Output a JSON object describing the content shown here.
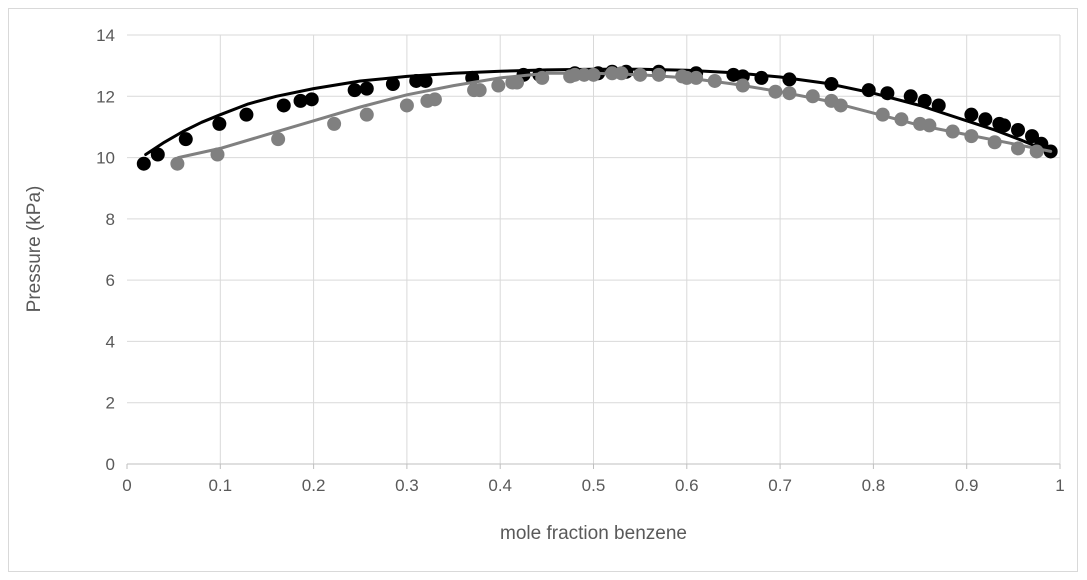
{
  "chart_data": {
    "type": "scatter",
    "title": "",
    "xlabel": "mole fraction benzene",
    "ylabel": "Pressure (kPa)",
    "xlim": [
      0,
      1
    ],
    "ylim": [
      0,
      14
    ],
    "x_ticks": [
      0,
      0.1,
      0.2,
      0.3,
      0.4,
      0.5,
      0.6,
      0.7,
      0.8,
      0.9,
      1
    ],
    "y_ticks": [
      0,
      2,
      4,
      6,
      8,
      10,
      12,
      14
    ],
    "x_tick_labels": [
      "0",
      "0.1",
      "0.2",
      "0.3",
      "0.4",
      "0.5",
      "0.6",
      "0.7",
      "0.8",
      "0.9",
      "1"
    ],
    "y_tick_labels": [
      "0",
      "2",
      "4",
      "6",
      "8",
      "10",
      "12",
      "14"
    ],
    "grid": true,
    "series": [
      {
        "color": "#000000",
        "line_x": [
          0.02,
          0.04,
          0.06,
          0.08,
          0.1,
          0.13,
          0.16,
          0.2,
          0.25,
          0.3,
          0.35,
          0.4,
          0.45,
          0.5,
          0.55,
          0.6,
          0.65,
          0.7,
          0.75,
          0.8,
          0.85,
          0.9,
          0.93,
          0.96,
          0.98,
          0.99
        ],
        "line_y": [
          10.1,
          10.5,
          10.85,
          11.15,
          11.4,
          11.75,
          12.0,
          12.25,
          12.5,
          12.65,
          12.75,
          12.82,
          12.86,
          12.88,
          12.88,
          12.85,
          12.77,
          12.63,
          12.42,
          12.1,
          11.7,
          11.2,
          10.9,
          10.55,
          10.3,
          10.15
        ],
        "points_x": [
          0.018,
          0.033,
          0.063,
          0.099,
          0.128,
          0.168,
          0.186,
          0.198,
          0.244,
          0.257,
          0.285,
          0.31,
          0.32,
          0.37,
          0.425,
          0.442,
          0.48,
          0.505,
          0.52,
          0.535,
          0.57,
          0.61,
          0.65,
          0.66,
          0.68,
          0.71,
          0.755,
          0.795,
          0.815,
          0.84,
          0.855,
          0.87,
          0.905,
          0.92,
          0.935,
          0.94,
          0.955,
          0.97,
          0.98,
          0.99
        ],
        "points_y": [
          9.8,
          10.1,
          10.6,
          11.1,
          11.4,
          11.7,
          11.85,
          11.9,
          12.2,
          12.25,
          12.4,
          12.5,
          12.5,
          12.6,
          12.7,
          12.7,
          12.75,
          12.75,
          12.8,
          12.8,
          12.8,
          12.75,
          12.7,
          12.65,
          12.6,
          12.55,
          12.4,
          12.2,
          12.1,
          12.0,
          11.85,
          11.7,
          11.4,
          11.25,
          11.1,
          11.05,
          10.9,
          10.7,
          10.45,
          10.2
        ]
      },
      {
        "color": "#808080",
        "line_x": [
          0.055,
          0.1,
          0.15,
          0.2,
          0.25,
          0.3,
          0.35,
          0.4,
          0.45,
          0.5,
          0.55,
          0.6,
          0.65,
          0.7,
          0.75,
          0.8,
          0.85,
          0.9,
          0.95,
          0.99
        ],
        "line_y": [
          10.0,
          10.3,
          10.75,
          11.2,
          11.65,
          12.05,
          12.35,
          12.6,
          12.75,
          12.75,
          12.7,
          12.6,
          12.4,
          12.15,
          11.85,
          11.45,
          11.05,
          10.75,
          10.45,
          10.2
        ],
        "points_x": [
          0.054,
          0.097,
          0.162,
          0.222,
          0.257,
          0.3,
          0.322,
          0.33,
          0.372,
          0.378,
          0.398,
          0.413,
          0.418,
          0.445,
          0.475,
          0.48,
          0.49,
          0.5,
          0.52,
          0.53,
          0.55,
          0.57,
          0.595,
          0.6,
          0.61,
          0.63,
          0.66,
          0.695,
          0.71,
          0.735,
          0.755,
          0.765,
          0.81,
          0.83,
          0.85,
          0.86,
          0.885,
          0.905,
          0.93,
          0.955,
          0.975
        ],
        "points_y": [
          9.8,
          10.1,
          10.6,
          11.1,
          11.4,
          11.7,
          11.85,
          11.9,
          12.2,
          12.2,
          12.35,
          12.45,
          12.45,
          12.6,
          12.65,
          12.7,
          12.7,
          12.7,
          12.75,
          12.75,
          12.7,
          12.7,
          12.65,
          12.6,
          12.6,
          12.5,
          12.35,
          12.15,
          12.1,
          12.0,
          11.85,
          11.7,
          11.4,
          11.25,
          11.1,
          11.05,
          10.85,
          10.7,
          10.5,
          10.3,
          10.2
        ]
      }
    ]
  }
}
